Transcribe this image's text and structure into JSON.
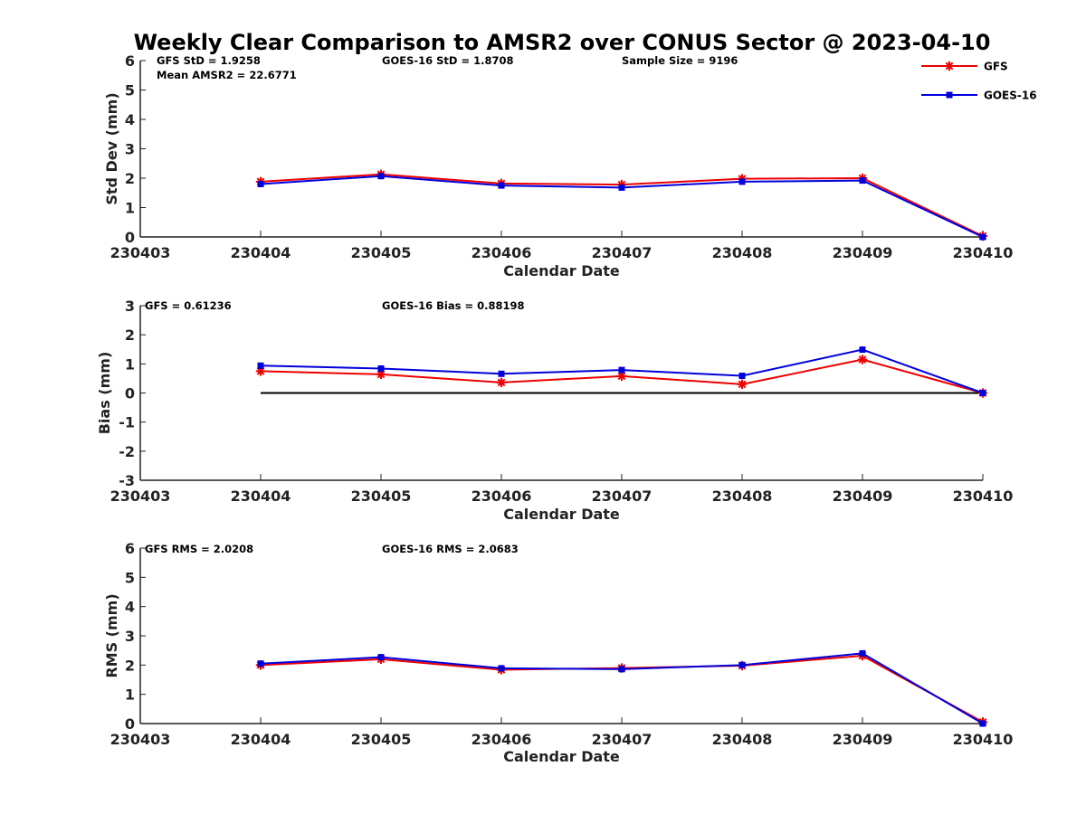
{
  "title": "Weekly Clear Comparison to AMSR2 over CONUS Sector @ 2023-04-10",
  "colors": {
    "gfs": "#ee0000",
    "goes": "#0000dd",
    "axis": "#222222",
    "zero_line": "#000000"
  },
  "legend": {
    "placement": "top-right",
    "items": [
      {
        "label": "GFS",
        "color": "#ee0000",
        "marker": "asterisk"
      },
      {
        "label": "GOES-16",
        "color": "#0000dd",
        "marker": "square"
      }
    ]
  },
  "chart_data": [
    {
      "type": "line",
      "xlabel": "Calendar Date",
      "ylabel": "Std Dev (mm)",
      "ylim": [
        0,
        6
      ],
      "yticks": [
        "0",
        "1",
        "2",
        "3",
        "4",
        "5",
        "6"
      ],
      "categories": [
        "230403",
        "230404",
        "230405",
        "230406",
        "230407",
        "230408",
        "230409",
        "230410"
      ],
      "zero_line": false,
      "annotations": [
        {
          "text": "GFS StD = 1.9258"
        },
        {
          "text": "GOES-16 StD = 1.8708"
        },
        {
          "text": "Sample Size = 9196"
        },
        {
          "text": "Mean AMSR2 = 22.6771"
        }
      ],
      "series": [
        {
          "name": "GFS",
          "x": [
            "230404",
            "230405",
            "230406",
            "230407",
            "230408",
            "230409",
            "230410"
          ],
          "values": [
            1.88,
            2.13,
            1.82,
            1.78,
            1.98,
            2.0,
            0.03
          ]
        },
        {
          "name": "GOES-16",
          "x": [
            "230404",
            "230405",
            "230406",
            "230407",
            "230408",
            "230409",
            "230410"
          ],
          "values": [
            1.8,
            2.07,
            1.75,
            1.68,
            1.88,
            1.92,
            0.0
          ]
        }
      ]
    },
    {
      "type": "line",
      "xlabel": "Calendar Date",
      "ylabel": "Bias (mm)",
      "ylim": [
        -3,
        3
      ],
      "yticks": [
        "-3",
        "-2",
        "-1",
        "0",
        "1",
        "2",
        "3"
      ],
      "categories": [
        "230403",
        "230404",
        "230405",
        "230406",
        "230407",
        "230408",
        "230409",
        "230410"
      ],
      "zero_line": true,
      "annotations": [
        {
          "text": "GFS = 0.61236"
        },
        {
          "text": "GOES-16 Bias  = 0.88198"
        }
      ],
      "series": [
        {
          "name": "GFS",
          "x": [
            "230404",
            "230405",
            "230406",
            "230407",
            "230408",
            "230409",
            "230410"
          ],
          "values": [
            0.75,
            0.64,
            0.36,
            0.58,
            0.3,
            1.15,
            0.0
          ]
        },
        {
          "name": "GOES-16",
          "x": [
            "230404",
            "230405",
            "230406",
            "230407",
            "230408",
            "230409",
            "230410"
          ],
          "values": [
            0.94,
            0.84,
            0.66,
            0.79,
            0.59,
            1.49,
            0.0
          ]
        }
      ]
    },
    {
      "type": "line",
      "xlabel": "Calendar Date",
      "ylabel": "RMS (mm)",
      "ylim": [
        0,
        6
      ],
      "yticks": [
        "0",
        "1",
        "2",
        "3",
        "4",
        "5",
        "6"
      ],
      "categories": [
        "230403",
        "230404",
        "230405",
        "230406",
        "230407",
        "230408",
        "230409",
        "230410"
      ],
      "zero_line": false,
      "annotations": [
        {
          "text": "GFS RMS = 2.0208"
        },
        {
          "text": "GOES-16 RMS = 2.0683"
        }
      ],
      "series": [
        {
          "name": "GFS",
          "x": [
            "230404",
            "230405",
            "230406",
            "230407",
            "230408",
            "230409",
            "230410"
          ],
          "values": [
            2.0,
            2.2,
            1.84,
            1.9,
            1.98,
            2.32,
            0.05
          ]
        },
        {
          "name": "GOES-16",
          "x": [
            "230404",
            "230405",
            "230406",
            "230407",
            "230408",
            "230409",
            "230410"
          ],
          "values": [
            2.05,
            2.27,
            1.89,
            1.86,
            2.0,
            2.4,
            0.0
          ]
        }
      ]
    }
  ]
}
